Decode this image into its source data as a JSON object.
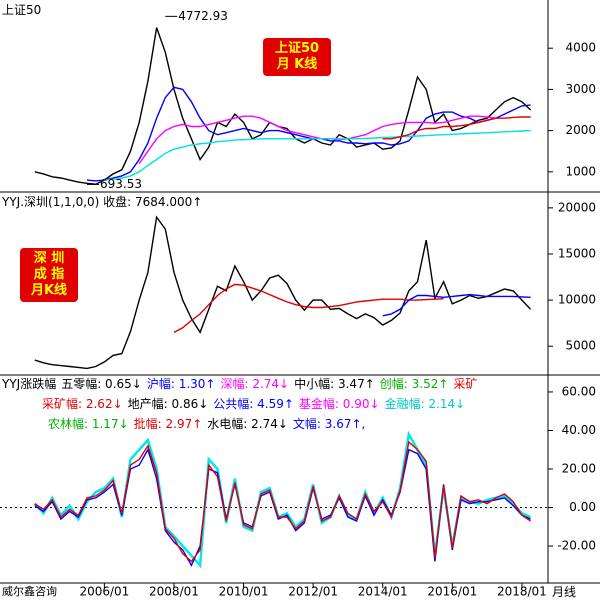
{
  "footer": {
    "source": "威尔鑫咨询",
    "period": "月线"
  },
  "chart_data": [
    {
      "type": "line",
      "header": "上证50",
      "badge": [
        "上证50",
        "月 K线"
      ],
      "annotations": [
        {
          "label": 4772.93,
          "x": "2007/10"
        },
        {
          "label": 693.53,
          "x": "2005/07"
        }
      ],
      "ylim": [
        510,
        5170
      ],
      "yticks": [
        1000,
        2000,
        3000,
        4000
      ],
      "series": [
        {
          "color": "#000000",
          "values": [
            1000,
            950,
            880,
            850,
            800,
            750,
            720,
            700,
            800,
            950,
            1050,
            1500,
            2200,
            3200,
            4500,
            3900,
            3000,
            2300,
            1800,
            1300,
            1600,
            2200,
            2100,
            2400,
            2200,
            1800,
            1900,
            2200,
            2100,
            2050,
            1800,
            1700,
            1800,
            1700,
            1650,
            1900,
            1800,
            1600,
            1650,
            1700,
            1550,
            1580,
            1750,
            2500,
            3300,
            3000,
            2200,
            2400,
            2000,
            2050,
            2150,
            2250,
            2300,
            2500,
            2700,
            2800,
            2700,
            2500
          ]
        },
        {
          "color": "#0000ff",
          "values": [
            null,
            null,
            null,
            null,
            null,
            null,
            800,
            780,
            800,
            850,
            900,
            1000,
            1300,
            1700,
            2300,
            2800,
            3050,
            3000,
            2700,
            2300,
            2000,
            1900,
            1950,
            2000,
            2050,
            2000,
            1950,
            2000,
            2000,
            1950,
            1900,
            1850,
            1800,
            1800,
            1750,
            1750,
            1700,
            1700,
            1680,
            1700,
            1700,
            1650,
            1680,
            1750,
            2000,
            2300,
            2400,
            2450,
            2450,
            2350,
            2300,
            2200,
            2250,
            2300,
            2400,
            2500,
            2600,
            2620
          ]
        },
        {
          "color": "#ff00ff",
          "values": [
            null,
            null,
            null,
            null,
            null,
            null,
            null,
            null,
            null,
            null,
            null,
            null,
            1200,
            1500,
            1800,
            2000,
            2100,
            2150,
            2100,
            2100,
            2150,
            2200,
            2250,
            2300,
            2350,
            2350,
            2300,
            2200,
            2100,
            2000,
            1950,
            1900,
            1850,
            1800,
            1800,
            1780,
            1800,
            1850,
            1900,
            2000,
            2100,
            2150,
            2180,
            2200,
            2200,
            2200,
            2180,
            2200,
            2250,
            2300,
            2350,
            2350,
            2330,
            2300
          ]
        },
        {
          "color": "#00e0e0",
          "values": [
            null,
            null,
            null,
            null,
            null,
            null,
            null,
            null,
            800,
            820,
            850,
            900,
            1000,
            1150,
            1300,
            1450,
            1550,
            1600,
            1650,
            1680,
            1700,
            1730,
            1750,
            1770,
            1780,
            1790,
            1800,
            1800,
            1800,
            1800,
            1800,
            1800,
            1800,
            1800,
            1800,
            1800,
            1800,
            1800,
            1810,
            1820,
            1830,
            1840,
            1850,
            1860,
            1870,
            1880,
            1890,
            1900,
            1910,
            1920,
            1930,
            1940,
            1950,
            1960,
            1970,
            1980,
            1990,
            2000
          ]
        },
        {
          "color": "#e00000",
          "values": [
            null,
            null,
            null,
            null,
            null,
            null,
            null,
            null,
            null,
            null,
            null,
            null,
            null,
            null,
            null,
            null,
            null,
            null,
            null,
            null,
            null,
            null,
            null,
            null,
            null,
            null,
            null,
            null,
            null,
            null,
            null,
            null,
            null,
            null,
            null,
            null,
            null,
            null,
            null,
            null,
            1800,
            1800,
            1850,
            1900,
            2000,
            2050,
            2050,
            2100,
            2100,
            2120,
            2150,
            2200,
            2250,
            2300,
            2300,
            2320,
            2330,
            2330
          ]
        }
      ]
    },
    {
      "type": "line",
      "header": "YYJ.深圳(1,1,0,0) 收盘: 7684.000↑",
      "badge": [
        "深 圳",
        "成 指",
        "月K线"
      ],
      "ylim": [
        1880,
        21720
      ],
      "yticks": [
        5000,
        10000,
        15000,
        20000
      ],
      "series": [
        {
          "color": "#000000",
          "values": [
            3500,
            3200,
            3000,
            2900,
            2800,
            2700,
            2600,
            2800,
            3300,
            4000,
            4200,
            6600,
            10000,
            13000,
            19000,
            17700,
            13000,
            10000,
            8000,
            6500,
            9000,
            11500,
            11000,
            13700,
            12000,
            10000,
            11000,
            12400,
            12700,
            11800,
            10000,
            8900,
            10000,
            10000,
            9000,
            9100,
            8500,
            8000,
            8500,
            8100,
            7300,
            7800,
            8600,
            11000,
            12000,
            16500,
            10200,
            12000,
            9600,
            10000,
            10500,
            10200,
            10400,
            10800,
            11200,
            11000,
            10000,
            9000
          ]
        },
        {
          "color": "#e00000",
          "values": [
            null,
            null,
            null,
            null,
            null,
            null,
            null,
            null,
            null,
            null,
            null,
            null,
            null,
            null,
            null,
            null,
            6500,
            7000,
            7800,
            8500,
            9500,
            10500,
            11200,
            11700,
            11600,
            11300,
            11000,
            10600,
            10200,
            9800,
            9500,
            9300,
            9200,
            9200,
            9300,
            9400,
            9600,
            9800,
            9900,
            10000,
            10100,
            10100,
            10100,
            10000,
            10000,
            10050,
            10100,
            10150
          ]
        },
        {
          "color": "#0000ff",
          "values": [
            null,
            null,
            null,
            null,
            null,
            null,
            null,
            null,
            null,
            null,
            null,
            null,
            null,
            null,
            null,
            null,
            null,
            null,
            null,
            null,
            null,
            null,
            null,
            null,
            null,
            null,
            null,
            null,
            null,
            null,
            null,
            null,
            null,
            null,
            null,
            null,
            null,
            null,
            null,
            null,
            8300,
            8500,
            9000,
            10000,
            10500,
            10500,
            10400,
            10300,
            10400,
            10500,
            10600,
            10500,
            10400,
            10400,
            10400,
            10400,
            10350,
            10300
          ]
        }
      ]
    },
    {
      "type": "line",
      "dashed_zero": true,
      "header": [
        [
          {
            "text": "YYJ涨跌幅",
            "color": "#000000"
          },
          {
            "text": "五零幅: 0.65↓",
            "color": "#000000"
          },
          {
            "text": "沪幅: 1.30↑",
            "color": "#0000ff"
          },
          {
            "text": "深幅: 2.74↓",
            "color": "#ff00ff"
          },
          {
            "text": "中小幅: 3.47↑",
            "color": "#000000"
          },
          {
            "text": "创幅: 3.52↑",
            "color": "#00b000"
          },
          {
            "text": "采矿",
            "color": "#e00000"
          }
        ],
        [
          {
            "text": "采矿幅: 2.62↓",
            "color": "#e00000"
          },
          {
            "text": "地产幅: 0.86↓",
            "color": "#000000"
          },
          {
            "text": "公共幅: 4.59↑",
            "color": "#0000ff"
          },
          {
            "text": "基金幅: 0.90↓",
            "color": "#ff00ff"
          },
          {
            "text": "金融幅: 2.14↓",
            "color": "#00c8c8"
          }
        ],
        [
          {
            "text": "农林幅: 1.17↓",
            "color": "#00b000"
          },
          {
            "text": "批幅: 2.97↑",
            "color": "#e00000"
          },
          {
            "text": "水电幅: 2.74↓",
            "color": "#000000"
          },
          {
            "text": "文幅: 3.67↑,",
            "color": "#0000ff"
          }
        ]
      ],
      "x": [
        "2004/01",
        "2004/04",
        "2004/07",
        "2004/10",
        "2005/01",
        "2005/04",
        "2005/07",
        "2005/10",
        "2006/01",
        "2006/04",
        "2006/07",
        "2006/10",
        "2007/01",
        "2007/04",
        "2007/07",
        "2007/10",
        "2008/01",
        "2008/04",
        "2008/07",
        "2008/10",
        "2009/01",
        "2009/04",
        "2009/07",
        "2009/10",
        "2010/01",
        "2010/04",
        "2010/07",
        "2010/10",
        "2011/01",
        "2011/04",
        "2011/07",
        "2011/10",
        "2012/01",
        "2012/04",
        "2012/07",
        "2012/10",
        "2013/01",
        "2013/04",
        "2013/07",
        "2013/10",
        "2014/01",
        "2014/04",
        "2014/07",
        "2014/10",
        "2015/01",
        "2015/04",
        "2015/07",
        "2015/10",
        "2016/01",
        "2016/04",
        "2016/07",
        "2016/10",
        "2017/01",
        "2017/04",
        "2017/07",
        "2017/10",
        "2018/01",
        "2018/04"
      ],
      "xlim": [
        "2003/01",
        "2018/10"
      ],
      "xticks": [
        "2006/01",
        "2008/01",
        "2010/01",
        "2012/01",
        "2014/01",
        "2016/01",
        "2018/01"
      ],
      "ylim": [
        -39.2,
        68.8
      ],
      "yticks": [
        {
          "value": -20,
          "label": "-20.00"
        },
        {
          "value": 0,
          "label": "0.00"
        },
        {
          "value": 20,
          "label": "20.00"
        },
        {
          "value": 40,
          "label": "40.00"
        },
        {
          "value": 60,
          "label": "60.00"
        }
      ],
      "series": [
        {
          "color": "#00e8e8",
          "values": [
            2,
            -3,
            5,
            -4,
            1,
            -6,
            3,
            8,
            10,
            15,
            -5,
            25,
            30,
            35,
            20,
            -10,
            -15,
            -20,
            -25,
            -30,
            25,
            20,
            -8,
            15,
            -10,
            -12,
            8,
            10,
            -5,
            -3,
            -10,
            -6,
            12,
            -8,
            -5,
            6,
            -4,
            -6,
            8,
            -3,
            5,
            -5,
            10,
            38,
            30,
            22,
            -25,
            10,
            -20,
            5,
            3,
            2,
            4,
            5,
            6,
            2,
            -3,
            -5
          ]
        },
        {
          "color": "#0000ff",
          "values": [
            1,
            -2,
            3,
            -6,
            -2,
            -5,
            4,
            5,
            8,
            12,
            -4,
            20,
            22,
            30,
            15,
            -12,
            -18,
            -22,
            -30,
            -20,
            20,
            18,
            -6,
            12,
            -8,
            -10,
            6,
            8,
            -6,
            -4,
            -12,
            -8,
            10,
            -6,
            -4,
            5,
            -5,
            -7,
            6,
            -4,
            4,
            -4,
            8,
            30,
            28,
            20,
            -28,
            12,
            -22,
            4,
            2,
            3,
            3,
            4,
            5,
            1,
            -4,
            -6
          ]
        },
        {
          "color": "#e00000",
          "values": [
            2,
            -1,
            4,
            -5,
            -1,
            -4,
            5,
            6,
            9,
            14,
            -3,
            22,
            25,
            32,
            18,
            -11,
            -16,
            -24,
            -28,
            -22,
            22,
            16,
            -7,
            13,
            -9,
            -11,
            7,
            9,
            -5,
            -5,
            -11,
            -7,
            11,
            -7,
            -5,
            6,
            -3,
            -6,
            7,
            -2,
            3,
            -5,
            9,
            34,
            30,
            24,
            -26,
            11,
            -21,
            6,
            3,
            4,
            2,
            5,
            7,
            3,
            -4,
            -7
          ]
        }
      ]
    }
  ]
}
